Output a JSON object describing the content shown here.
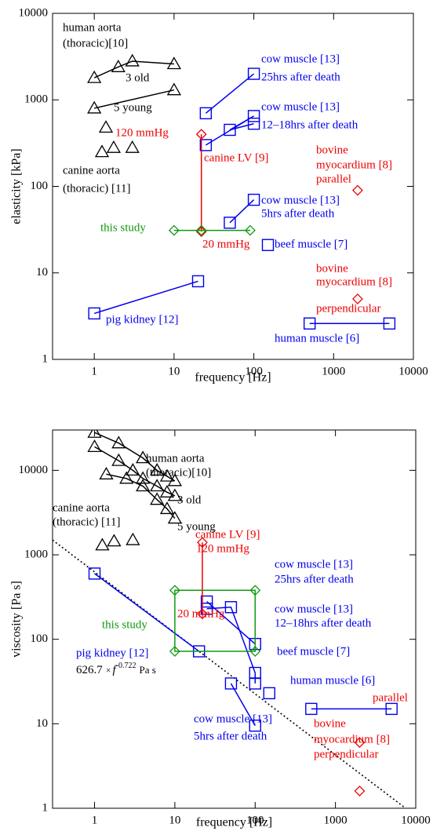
{
  "chart_data": [
    {
      "type": "scatter",
      "log_x": true,
      "log_y": true,
      "x_label": "frequency [Hz]",
      "y_label": "elasticity [kPa]",
      "xlim": [
        0.3,
        10000
      ],
      "ylim": [
        1,
        10000
      ],
      "xticks": [
        1,
        10,
        100,
        1000,
        10000
      ],
      "yticks": [
        1,
        10,
        100,
        1000,
        10000
      ],
      "series": [
        {
          "marker": "triangle",
          "color": "#000000",
          "connect": true,
          "x": [
            1,
            2,
            3,
            10
          ],
          "values": [
            1800,
            2400,
            2800,
            2600
          ]
        },
        {
          "marker": "triangle",
          "color": "#000000",
          "connect": true,
          "x": [
            1,
            10
          ],
          "values": [
            800,
            1300
          ]
        },
        {
          "marker": "triangle",
          "color": "#000000",
          "connect": false,
          "x": [
            1.4
          ],
          "values": [
            480
          ]
        },
        {
          "marker": "triangle",
          "color": "#000000",
          "connect": false,
          "x": [
            1.25,
            1.75,
            3
          ],
          "values": [
            250,
            280,
            280
          ]
        },
        {
          "marker": "square",
          "color": "#0000ee",
          "connect": true,
          "x": [
            25,
            100
          ],
          "values": [
            700,
            2000
          ]
        },
        {
          "marker": "square",
          "color": "#0000ee",
          "connect": true,
          "x": [
            25,
            100,
            50,
            100
          ],
          "values": [
            300,
            650,
            450,
            530
          ]
        },
        {
          "marker": "square",
          "color": "#0000ee",
          "connect": true,
          "x": [
            50,
            100
          ],
          "values": [
            38,
            70
          ]
        },
        {
          "marker": "square",
          "color": "#0000ee",
          "connect": false,
          "x": [
            150
          ],
          "values": [
            21
          ]
        },
        {
          "marker": "square",
          "color": "#0000ee",
          "connect": true,
          "x": [
            1,
            20
          ],
          "values": [
            3.4,
            8
          ]
        },
        {
          "marker": "square",
          "color": "#0000ee",
          "connect": true,
          "x": [
            500,
            5000
          ],
          "values": [
            2.6,
            2.6
          ]
        },
        {
          "marker": "diamond",
          "color": "#ee0000",
          "connect": true,
          "x": [
            22,
            22
          ],
          "values": [
            400,
            30
          ]
        },
        {
          "marker": "diamond",
          "color": "#119911",
          "connect": true,
          "x": [
            10,
            22,
            90
          ],
          "values": [
            31,
            31,
            31
          ]
        },
        {
          "marker": "diamond",
          "color": "#ee0000",
          "connect": false,
          "x": [
            2000
          ],
          "values": [
            90
          ]
        },
        {
          "marker": "diamond",
          "color": "#ee0000",
          "connect": false,
          "x": [
            2000
          ],
          "values": [
            5
          ]
        }
      ],
      "annotations": [
        {
          "text": "human aorta",
          "color": "#000000"
        },
        {
          "text": "(thoracic)[10]",
          "color": "#000000"
        },
        {
          "text": "3 old",
          "color": "#000000"
        },
        {
          "text": "5 young",
          "color": "#000000"
        },
        {
          "text": "120 mmHg",
          "color": "#ee0000"
        },
        {
          "text": "canine aorta",
          "color": "#000000"
        },
        {
          "text": "(thoracic) [11]",
          "color": "#000000"
        },
        {
          "text": "cow muscle [13]",
          "color": "#0000ee"
        },
        {
          "text": "25hrs after death",
          "color": "#0000ee"
        },
        {
          "text": "cow muscle [13]",
          "color": "#0000ee"
        },
        {
          "text": "12–18hrs after death",
          "color": "#0000ee"
        },
        {
          "text": "canine LV [9]",
          "color": "#ee0000"
        },
        {
          "text": "bovine",
          "color": "#ee0000"
        },
        {
          "text": "myocardium [8]",
          "color": "#ee0000"
        },
        {
          "text": "parallel",
          "color": "#ee0000"
        },
        {
          "text": "cow muscle [13]",
          "color": "#0000ee"
        },
        {
          "text": "5hrs after death",
          "color": "#0000ee"
        },
        {
          "text": "this study",
          "color": "#119911"
        },
        {
          "text": "20 mmHg",
          "color": "#ee0000"
        },
        {
          "text": "beef muscle [7]",
          "color": "#0000ee"
        },
        {
          "text": "bovine",
          "color": "#ee0000"
        },
        {
          "text": "myocardium [8]",
          "color": "#ee0000"
        },
        {
          "text": "perpendicular",
          "color": "#ee0000"
        },
        {
          "text": "pig kidney [12]",
          "color": "#0000ee"
        },
        {
          "text": "human muscle [6]",
          "color": "#0000ee"
        }
      ]
    },
    {
      "type": "scatter",
      "log_x": true,
      "log_y": true,
      "x_label": "frequency [Hz]",
      "y_label": "viscosity [Pa s]",
      "xlim": [
        0.3,
        10000
      ],
      "ylim": [
        1,
        30000
      ],
      "xticks": [
        1,
        10,
        100,
        1000,
        10000
      ],
      "yticks": [
        1,
        10,
        100,
        1000,
        10000
      ],
      "series": [
        {
          "marker": "triangle",
          "color": "#000000",
          "connect": true,
          "x": [
            1,
            2,
            4,
            6,
            8,
            10
          ],
          "values": [
            28000,
            21000,
            14000,
            10000,
            8500,
            7500
          ]
        },
        {
          "marker": "triangle",
          "color": "#000000",
          "connect": true,
          "x": [
            1,
            2,
            3,
            4,
            6,
            8,
            10
          ],
          "values": [
            19000,
            13000,
            10000,
            8000,
            6500,
            5500,
            5000
          ]
        },
        {
          "marker": "triangle",
          "color": "#000000",
          "connect": true,
          "x": [
            1.4,
            2.5,
            4,
            6,
            8,
            10
          ],
          "values": [
            9000,
            8000,
            6500,
            4500,
            3500,
            2700
          ]
        },
        {
          "marker": "triangle",
          "color": "#000000",
          "connect": false,
          "x": [
            1.25,
            1.75,
            3
          ],
          "values": [
            1300,
            1450,
            1500
          ]
        },
        {
          "marker": "square",
          "color": "#0000ee",
          "connect": true,
          "x": [
            1,
            20
          ],
          "values": [
            600,
            72
          ]
        },
        {
          "marker": "square",
          "color": "#0000ee",
          "connect": true,
          "x": [
            25,
            100
          ],
          "values": [
            280,
            88
          ]
        },
        {
          "marker": "square",
          "color": "#0000ee",
          "connect": true,
          "x": [
            25,
            50,
            100,
            100
          ],
          "values": [
            230,
            240,
            40,
            30
          ]
        },
        {
          "marker": "square",
          "color": "#0000ee",
          "connect": true,
          "x": [
            50,
            100
          ],
          "values": [
            30,
            9.5
          ]
        },
        {
          "marker": "square",
          "color": "#0000ee",
          "connect": false,
          "x": [
            150
          ],
          "values": [
            23
          ]
        },
        {
          "marker": "square",
          "color": "#0000ee",
          "connect": true,
          "x": [
            500,
            5000
          ],
          "values": [
            15,
            15
          ]
        },
        {
          "marker": "diamond",
          "color": "#ee0000",
          "connect": true,
          "x": [
            22,
            22
          ],
          "values": [
            1400,
            200
          ]
        },
        {
          "marker": "diamond",
          "color": "#119911",
          "connect": true,
          "closed": true,
          "x": [
            10,
            100,
            100,
            10
          ],
          "values": [
            380,
            380,
            72,
            72
          ]
        },
        {
          "marker": "diamond",
          "color": "#ee0000",
          "connect": false,
          "x": [
            2000
          ],
          "values": [
            6
          ]
        },
        {
          "marker": "diamond",
          "color": "#ee0000",
          "connect": false,
          "x": [
            2000
          ],
          "values": [
            1.6
          ]
        }
      ],
      "fit": {
        "coef": 626.7,
        "times": "×",
        "var": "f",
        "exponent": -0.722,
        "unit": "Pa s"
      },
      "annotations": [
        {
          "text": "human aorta",
          "color": "#000000"
        },
        {
          "text": "(thoracic)[10]",
          "color": "#000000"
        },
        {
          "text": "3 old",
          "color": "#000000"
        },
        {
          "text": "5 young",
          "color": "#000000"
        },
        {
          "text": "canine aorta",
          "color": "#000000"
        },
        {
          "text": "(thoracic) [11]",
          "color": "#000000"
        },
        {
          "text": "canine LV [9]",
          "color": "#ee0000"
        },
        {
          "text": "120 mmHg",
          "color": "#ee0000"
        },
        {
          "text": "cow muscle [13]",
          "color": "#0000ee"
        },
        {
          "text": "25hrs after death",
          "color": "#0000ee"
        },
        {
          "text": "cow muscle [13]",
          "color": "#0000ee"
        },
        {
          "text": "12–18hrs after death",
          "color": "#0000ee"
        },
        {
          "text": "this study",
          "color": "#119911"
        },
        {
          "text": "20 mmHg",
          "color": "#ee0000"
        },
        {
          "text": "pig kidney [12]",
          "color": "#0000ee"
        },
        {
          "text": "beef muscle [7]",
          "color": "#0000ee"
        },
        {
          "text": "human muscle [6]",
          "color": "#0000ee"
        },
        {
          "text": "cow muscle [13]",
          "color": "#0000ee"
        },
        {
          "text": "5hrs after death",
          "color": "#0000ee"
        },
        {
          "text": "parallel",
          "color": "#ee0000"
        },
        {
          "text": "bovine",
          "color": "#ee0000"
        },
        {
          "text": "myocardium [8]",
          "color": "#ee0000"
        },
        {
          "text": "perpendicular",
          "color": "#ee0000"
        }
      ]
    }
  ]
}
